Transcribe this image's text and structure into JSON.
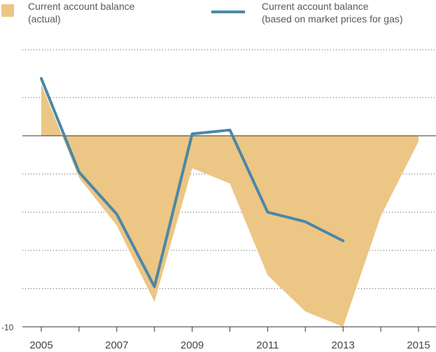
{
  "legend": [
    {
      "line1": "Current account balance",
      "line2": "(actual)"
    },
    {
      "line1": "Current account balance",
      "line2": "(based on market prices for gas)"
    }
  ],
  "colors": {
    "area": "#ecc684",
    "line": "#4b87a8",
    "axis": "#333333",
    "grid": "#555555"
  },
  "chart_data": {
    "type": "area",
    "x": [
      2005,
      2006,
      2007,
      2008,
      2009,
      2010,
      2011,
      2012,
      2013,
      2014,
      2015
    ],
    "ylim": [
      -10,
      5
    ],
    "grid": "dotted",
    "legend_position": "top",
    "x_ticks": [
      "2005",
      "2007",
      "2009",
      "2011",
      "2013",
      "2015"
    ],
    "y_ticks": [
      "-10"
    ],
    "series": [
      {
        "name": "Current account balance (actual)",
        "kind": "area",
        "x": [
          2005,
          2006,
          2007,
          2008,
          2009,
          2010,
          2011,
          2012,
          2013,
          2014,
          2015
        ],
        "values": [
          2.7,
          -2.2,
          -4.7,
          -8.7,
          -1.7,
          -2.5,
          -7.3,
          -9.2,
          -10.0,
          -4.2,
          -0.3
        ]
      },
      {
        "name": "Current account balance (based on market prices for gas)",
        "kind": "line",
        "x": [
          2005,
          2006,
          2007,
          2008,
          2009,
          2010,
          2011,
          2012,
          2013
        ],
        "values": [
          3.0,
          -1.9,
          -4.1,
          -7.9,
          0.1,
          0.3,
          -4.0,
          -4.5,
          -5.5
        ]
      }
    ]
  }
}
